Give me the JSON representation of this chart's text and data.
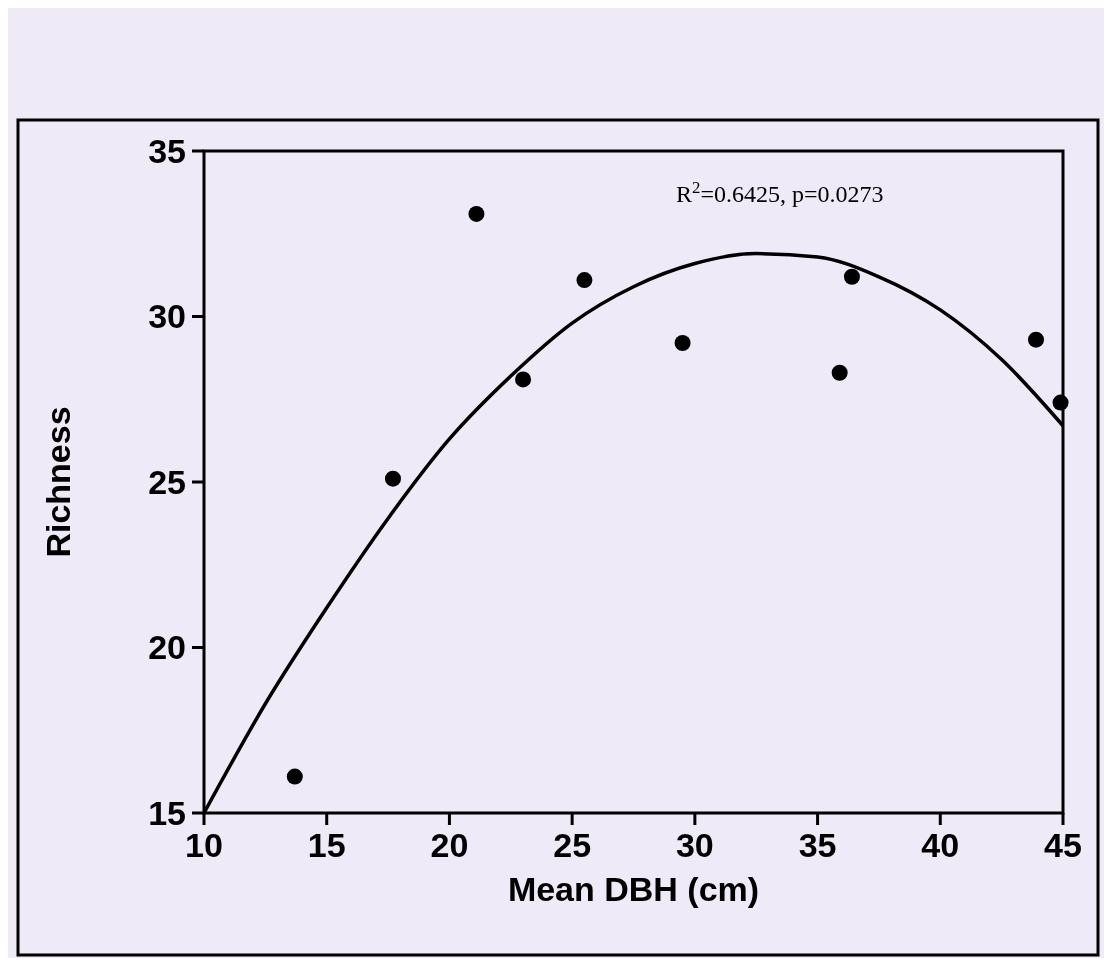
{
  "chart_data": {
    "type": "scatter",
    "xlabel": "Mean DBH (cm)",
    "ylabel": "Richness",
    "xlim": [
      10,
      45
    ],
    "xticks": [
      10,
      15,
      20,
      25,
      30,
      35,
      40,
      45
    ],
    "ylim": [
      15,
      35
    ],
    "yticks": [
      15,
      20,
      25,
      30,
      35
    ],
    "grid": false,
    "marker": "circle",
    "annotations": [
      "R$^{2}$=0.6425, p=0.0273"
    ],
    "series": [
      {
        "color": "#000000",
        "x": [
          13.7,
          17.7,
          21.1,
          23.0,
          25.5,
          29.5,
          35.9,
          36.4,
          43.9,
          44.9
        ],
        "values": [
          16.1,
          25.1,
          33.1,
          28.1,
          31.1,
          29.2,
          28.3,
          31.2,
          29.3,
          27.4
        ]
      },
      {
        "type": "line",
        "color": "#000000",
        "marker": "none",
        "line_style": "solid",
        "x": [
          10,
          12.5,
          15,
          17.5,
          20,
          22.5,
          25,
          27.5,
          30,
          32.5,
          35,
          37.5,
          40,
          42.5,
          45
        ],
        "values": [
          15,
          18.3,
          21.2,
          23.9,
          26.3,
          28.2,
          29.8,
          30.9,
          31.6,
          31.9,
          31.8,
          31.2,
          30.2,
          28.7,
          26.7
        ]
      }
    ]
  }
}
